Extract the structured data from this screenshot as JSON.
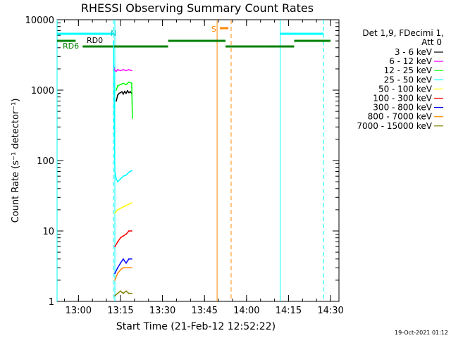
{
  "chart_data": {
    "type": "line",
    "title": "RHESSI Observing Summary Count Rates",
    "xlabel": "Start Time (21-Feb-12 12:52:22)",
    "ylabel": "Count Rate (s⁻¹ detector⁻¹)",
    "y_scale": "log",
    "ylim": [
      1,
      10000
    ],
    "xlim": [
      "12:52:22",
      "14:33:00"
    ],
    "x_tick_labels": [
      "13:00",
      "13:15",
      "13:30",
      "13:45",
      "14:00",
      "14:15",
      "14:30"
    ],
    "y_tick_labels": [
      "1",
      "10",
      "100",
      "1000",
      "10000"
    ],
    "timestamp": "19-Oct-2021 01:12",
    "legend_header": [
      "Det 1,9, FDecimi 1,",
      "Att 0"
    ],
    "legend_position": "right",
    "series": [
      {
        "name": "3 - 6 keV",
        "color": "#000000",
        "x": [
          "13:13:30",
          "13:14:00",
          "13:14:30",
          "13:15:00",
          "13:15:30",
          "13:16:00",
          "13:16:30",
          "13:17:00",
          "13:17:30",
          "13:18:00",
          "13:18:30",
          "13:19:00"
        ],
        "values": [
          700,
          850,
          900,
          920,
          950,
          880,
          960,
          900,
          980,
          920,
          950,
          900
        ]
      },
      {
        "name": "6 - 12 keV",
        "color": "#ff00ff",
        "x": [
          "13:12:30",
          "13:13:00",
          "13:13:30",
          "13:14:00",
          "13:15:00",
          "13:16:00",
          "13:17:00",
          "13:18:00",
          "13:19:00"
        ],
        "values": [
          2200,
          1900,
          1850,
          1950,
          1900,
          1950,
          1900,
          1950,
          1900
        ]
      },
      {
        "name": "12 - 25 keV",
        "color": "#00ff00",
        "x": [
          "13:13:30",
          "13:14:00",
          "13:15:00",
          "13:16:00",
          "13:17:00",
          "13:18:00",
          "13:19:00",
          "13:19:15"
        ],
        "values": [
          1000,
          1150,
          1200,
          1250,
          1200,
          1300,
          1250,
          400
        ]
      },
      {
        "name": "25 - 50 keV",
        "color": "#00ffff",
        "x": [
          "13:12:30",
          "13:13:00",
          "13:13:30",
          "13:14:00",
          "13:15:00",
          "13:16:00",
          "13:17:00",
          "13:18:00",
          "13:19:00"
        ],
        "values": [
          5000,
          70,
          55,
          50,
          55,
          60,
          62,
          68,
          72
        ]
      },
      {
        "name": "50 - 100 keV",
        "color": "#ffff00",
        "x": [
          "13:13:00",
          "13:14:00",
          "13:15:00",
          "13:16:00",
          "13:17:00",
          "13:18:00",
          "13:19:00"
        ],
        "values": [
          18,
          20,
          21,
          22,
          23,
          24,
          25
        ]
      },
      {
        "name": "100 - 300 keV",
        "color": "#ff0000",
        "x": [
          "13:13:00",
          "13:14:00",
          "13:15:00",
          "13:16:00",
          "13:17:00",
          "13:18:00",
          "13:19:00"
        ],
        "values": [
          6,
          7,
          8,
          8.5,
          9,
          10,
          10
        ]
      },
      {
        "name": "300 - 800 keV",
        "color": "#0000ff",
        "x": [
          "13:13:00",
          "13:14:00",
          "13:15:00",
          "13:16:00",
          "13:17:00",
          "13:18:00",
          "13:19:00"
        ],
        "values": [
          2.5,
          3,
          3.5,
          4,
          3.5,
          4,
          4
        ]
      },
      {
        "name": "800 - 7000 keV",
        "color": "#ff8800",
        "x": [
          "13:13:00",
          "13:14:00",
          "13:15:00",
          "13:16:00",
          "13:17:00",
          "13:18:00",
          "13:19:00"
        ],
        "values": [
          2,
          2.5,
          2.8,
          3,
          3,
          3,
          3
        ]
      },
      {
        "name": "7000 - 15000 keV",
        "color": "#808000",
        "x": [
          "13:13:00",
          "13:14:00",
          "13:15:00",
          "13:16:00",
          "13:17:00",
          "13:18:00",
          "13:19:00"
        ],
        "values": [
          1.2,
          1.3,
          1.4,
          1.3,
          1.4,
          1.3,
          1.3
        ]
      }
    ],
    "annotations": [
      {
        "label": "N",
        "color": "#00ffff"
      },
      {
        "label": "RD0",
        "color": "#000000"
      },
      {
        "label": "RD6",
        "color": "#008000"
      },
      {
        "label": "S",
        "color": "#ff8800"
      }
    ],
    "flag_bars": {
      "night": {
        "color": "#00ffff",
        "intervals": [
          [
            "12:52:22",
            "13:12:30"
          ],
          [
            "14:12:00",
            "14:27:30"
          ]
        ]
      },
      "saa": {
        "color": "#ff8800",
        "intervals": [
          [
            "13:50:30",
            "13:53:30"
          ]
        ]
      },
      "data_gaps": {
        "color": "#008000",
        "intervals": [
          [
            "12:52:22",
            "12:59:00"
          ],
          [
            "13:01:30",
            "13:32:00"
          ],
          [
            "13:32:00",
            "13:52:30"
          ],
          [
            "13:52:30",
            "14:07:00"
          ],
          [
            "14:07:00",
            "14:17:00"
          ],
          [
            "14:17:00",
            "14:30:00"
          ]
        ]
      }
    },
    "vertical_lines": [
      {
        "time": "12:52:22",
        "color": "#00ffff",
        "style": "solid"
      },
      {
        "time": "13:12:30",
        "color": "#00ffff",
        "style": "dashed"
      },
      {
        "time": "13:13:00",
        "color": "#00ffff",
        "style": "solid"
      },
      {
        "time": "13:49:30",
        "color": "#ff8800",
        "style": "solid"
      },
      {
        "time": "13:54:30",
        "color": "#ff8800",
        "style": "dashed"
      },
      {
        "time": "14:12:00",
        "color": "#00ffff",
        "style": "solid"
      },
      {
        "time": "14:27:30",
        "color": "#00ffff",
        "style": "dashed"
      }
    ]
  }
}
